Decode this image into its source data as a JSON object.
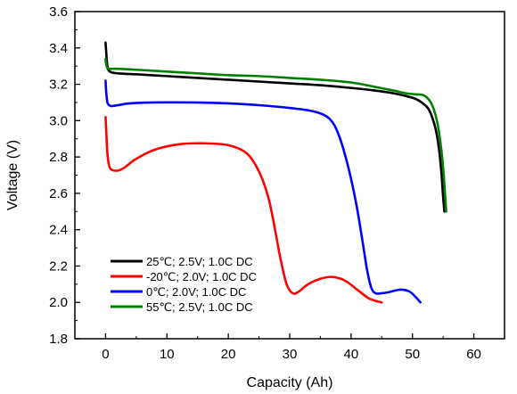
{
  "chart_data": {
    "type": "line",
    "title": "",
    "xlabel": "Capacity (Ah)",
    "ylabel": "Voltage (V)",
    "xlim": [
      -5,
      65
    ],
    "ylim": [
      1.8,
      3.6
    ],
    "xticks": [
      0,
      10,
      20,
      30,
      40,
      50,
      60
    ],
    "yticks": [
      1.8,
      2.0,
      2.2,
      2.4,
      2.6,
      2.8,
      3.0,
      3.2,
      3.4,
      3.6
    ],
    "x_tick_labels": [
      "0",
      "10",
      "20",
      "30",
      "40",
      "50",
      "60"
    ],
    "y_tick_labels": [
      "1.8",
      "2.0",
      "2.2",
      "2.4",
      "2.6",
      "2.8",
      "3.0",
      "3.2",
      "3.4",
      "3.6"
    ],
    "grid": false,
    "legend_position": "bottom-left",
    "series": [
      {
        "name": "25℃; 2.5V; 1.0C DC",
        "color": "#000000",
        "x": [
          0,
          0.1,
          0.3,
          0.7,
          2,
          5,
          10,
          15,
          20,
          25,
          30,
          35,
          40,
          44,
          47,
          49,
          50.5,
          51.5,
          52.5,
          53.2,
          53.8,
          54.3,
          54.7,
          55.0,
          55.2
        ],
        "y": [
          3.43,
          3.38,
          3.3,
          3.27,
          3.26,
          3.255,
          3.245,
          3.235,
          3.225,
          3.215,
          3.205,
          3.195,
          3.18,
          3.165,
          3.15,
          3.135,
          3.12,
          3.1,
          3.07,
          3.02,
          2.95,
          2.85,
          2.72,
          2.58,
          2.5
        ]
      },
      {
        "name": "-20℃; 2.0V; 1.0C DC",
        "color": "#ff0000",
        "x": [
          0,
          0.1,
          0.3,
          0.6,
          1,
          2,
          3,
          5,
          8,
          12,
          16,
          20,
          23,
          25,
          26.5,
          27.5,
          28.5,
          29.5,
          30.5,
          31.5,
          33,
          35,
          37,
          39,
          41,
          43,
          45
        ],
        "y": [
          3.02,
          2.95,
          2.82,
          2.75,
          2.73,
          2.725,
          2.74,
          2.79,
          2.84,
          2.87,
          2.875,
          2.865,
          2.82,
          2.72,
          2.58,
          2.42,
          2.24,
          2.1,
          2.05,
          2.06,
          2.1,
          2.13,
          2.14,
          2.12,
          2.07,
          2.02,
          2.0
        ]
      },
      {
        "name": "0℃; 2.0V; 1.0C DC",
        "color": "#0000ff",
        "x": [
          0,
          0.1,
          0.3,
          0.6,
          1,
          2,
          4,
          8,
          14,
          20,
          25,
          30,
          34,
          36.5,
          38,
          39.5,
          40.8,
          41.8,
          42.6,
          43.3,
          44,
          44.8,
          46,
          48,
          49.5,
          50.5,
          51.3
        ],
        "y": [
          3.22,
          3.16,
          3.1,
          3.085,
          3.08,
          3.085,
          3.095,
          3.1,
          3.1,
          3.095,
          3.085,
          3.07,
          3.05,
          3.01,
          2.92,
          2.75,
          2.55,
          2.35,
          2.18,
          2.08,
          2.05,
          2.05,
          2.055,
          2.07,
          2.06,
          2.03,
          2.0
        ]
      },
      {
        "name": "55℃; 2.5V; 1.0C DC",
        "color": "#008000",
        "x": [
          0,
          0.1,
          0.3,
          0.7,
          2,
          5,
          10,
          15,
          20,
          25,
          30,
          35,
          40,
          44,
          47,
          49,
          50.5,
          51.8,
          52.8,
          53.5,
          54.1,
          54.6,
          55.0,
          55.3,
          55.5
        ],
        "y": [
          3.34,
          3.31,
          3.29,
          3.285,
          3.285,
          3.28,
          3.27,
          3.26,
          3.25,
          3.245,
          3.235,
          3.225,
          3.21,
          3.185,
          3.165,
          3.15,
          3.145,
          3.14,
          3.11,
          3.06,
          2.98,
          2.87,
          2.74,
          2.6,
          2.5
        ]
      }
    ]
  }
}
